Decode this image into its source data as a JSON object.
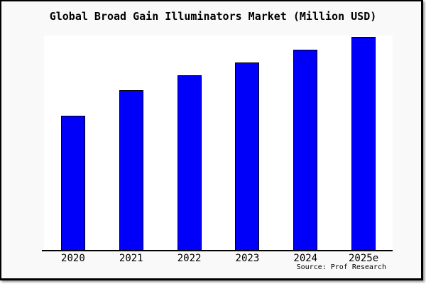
{
  "title": "Global Broad Gain Illuminators Market (Million USD)",
  "source_credit": "Source: Prof Research",
  "colors": {
    "bar_fill": "#0000fa",
    "bar_border": "#000000",
    "figure_background": "#f9f9f9",
    "plot_background": "#ffffff",
    "axis": "#000000",
    "frame_border": "#000000",
    "text": "#000000"
  },
  "chart_data": {
    "type": "bar",
    "categories": [
      "2020",
      "2021",
      "2022",
      "2023",
      "2024",
      "2025e"
    ],
    "values": [
      63,
      75,
      82,
      88,
      94,
      100
    ],
    "title": "Global Broad Gain Illuminators Market (Million USD)",
    "xlabel": "",
    "ylabel": "",
    "ylim": [
      0,
      100
    ],
    "y_axis_visible": false,
    "grid": false,
    "legend": "none",
    "annotations": [
      "Source: Prof Research"
    ]
  }
}
